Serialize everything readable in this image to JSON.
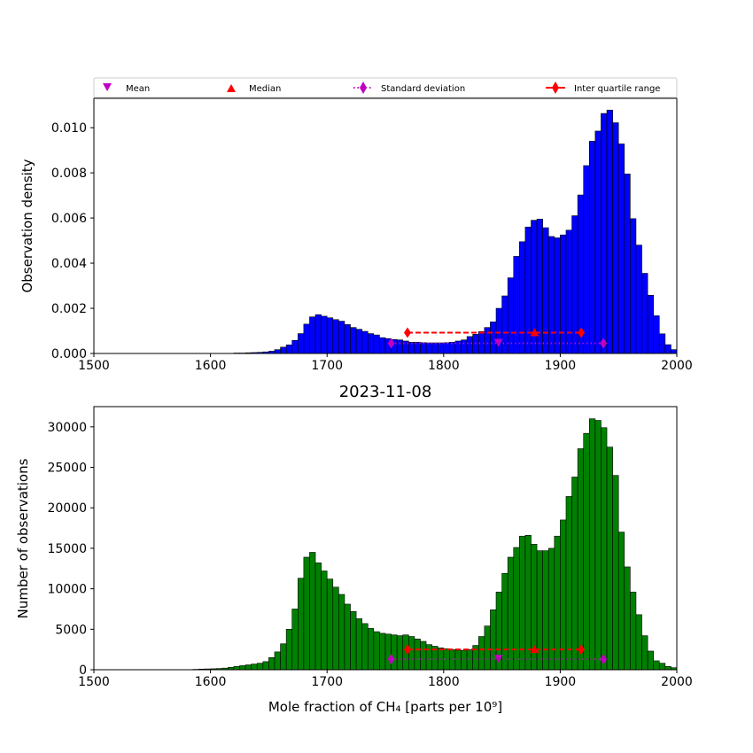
{
  "title": "2023-11-08",
  "legend": {
    "placement": "top",
    "mean_label": "Mean",
    "median_label": "Median",
    "std_label": "Standard deviation",
    "iqr_label": "Inter quartile range"
  },
  "colors": {
    "density_bars": "#0000ff",
    "count_bars": "#008000",
    "mean_marker": "#c000c0",
    "median_marker": "#ff0000",
    "std_marker": "#c000c0",
    "iqr_marker": "#ff0000"
  },
  "chart_data": [
    {
      "type": "bar",
      "ylabel": "Observation density",
      "xlabel": "",
      "xlim": [
        1500,
        2000
      ],
      "ylim": [
        0,
        0.0113
      ],
      "xticks": [
        "1500",
        "1600",
        "1700",
        "1800",
        "1900",
        "2000"
      ],
      "yticks": [
        "0.000",
        "0.002",
        "0.004",
        "0.006",
        "0.008",
        "0.010"
      ],
      "bin_width": 5,
      "bin_start": 1500,
      "values": [
        0,
        0,
        0,
        0,
        0,
        0,
        0,
        0,
        0,
        0,
        0,
        0,
        0,
        0,
        0,
        0,
        0,
        0,
        0,
        0,
        0,
        0,
        0,
        0,
        2e-05,
        2e-05,
        3e-05,
        4e-05,
        5e-05,
        7e-05,
        0.0001,
        0.00017,
        0.00028,
        0.00038,
        0.00058,
        0.00088,
        0.0013,
        0.00162,
        0.00172,
        0.00165,
        0.00158,
        0.0015,
        0.00143,
        0.00128,
        0.00115,
        0.00107,
        0.00098,
        0.00088,
        0.00082,
        0.0007,
        0.00066,
        0.00062,
        0.0006,
        0.00055,
        0.0005,
        0.0005,
        0.00048,
        0.00047,
        0.00047,
        0.00047,
        0.00048,
        0.0005,
        0.00055,
        0.0006,
        0.00075,
        0.00085,
        0.00097,
        0.00115,
        0.0014,
        0.002,
        0.00255,
        0.00335,
        0.0043,
        0.00495,
        0.0056,
        0.0059,
        0.00595,
        0.00557,
        0.00518,
        0.00512,
        0.00525,
        0.00546,
        0.0061,
        0.00702,
        0.00832,
        0.0094,
        0.00985,
        0.01063,
        0.01078,
        0.01022,
        0.00928,
        0.00795,
        0.00597,
        0.0048,
        0.00355,
        0.00258,
        0.00167,
        0.00087,
        0.00039,
        0.00017
      ],
      "stats": {
        "mean": 1847,
        "median": 1878,
        "std_range": [
          1755,
          1937
        ],
        "iqr_range": [
          1769,
          1918
        ],
        "std_level": 0.00045,
        "iqr_level": 0.00092,
        "mean_level": 0.00045,
        "median_level": 0.00092
      }
    },
    {
      "type": "bar",
      "ylabel": "Number of observations",
      "xlabel": "Mole fraction of CH₄ [parts per 10⁹]",
      "xlim": [
        1500,
        2000
      ],
      "ylim": [
        0,
        32500
      ],
      "xticks": [
        "1500",
        "1600",
        "1700",
        "1800",
        "1900",
        "2000"
      ],
      "yticks": [
        "0",
        "5000",
        "10000",
        "15000",
        "20000",
        "25000",
        "30000"
      ],
      "bin_width": 5,
      "bin_start": 1500,
      "values": [
        0,
        0,
        0,
        0,
        0,
        0,
        0,
        0,
        0,
        0,
        0,
        0,
        0,
        0,
        0,
        0,
        0,
        50,
        80,
        100,
        120,
        150,
        200,
        300,
        400,
        500,
        600,
        700,
        800,
        1000,
        1500,
        2200,
        3200,
        5000,
        7500,
        11300,
        13900,
        14500,
        13200,
        12200,
        11200,
        10200,
        9300,
        8100,
        7200,
        6300,
        5700,
        5100,
        4700,
        4500,
        4400,
        4300,
        4200,
        4300,
        4100,
        3800,
        3500,
        3100,
        2900,
        2700,
        2600,
        2500,
        2400,
        2400,
        2500,
        3000,
        4100,
        5400,
        7400,
        9600,
        11900,
        13900,
        15100,
        16500,
        16600,
        15500,
        14700,
        14700,
        15000,
        16500,
        18500,
        21400,
        23800,
        27300,
        29200,
        31000,
        30800,
        29900,
        27500,
        24000,
        17000,
        12700,
        9600,
        6800,
        4200,
        2300,
        1100,
        800,
        400,
        250
      ],
      "stats": {
        "mean": 1847,
        "median": 1878,
        "std_range": [
          1755,
          1937
        ],
        "iqr_range": [
          1769,
          1918
        ],
        "std_level": 1300,
        "iqr_level": 2500,
        "mean_level": 1300,
        "median_level": 2500
      }
    }
  ]
}
